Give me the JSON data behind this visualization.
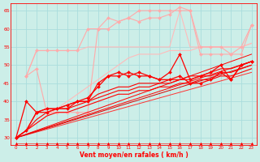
{
  "bg_color": "#cceee8",
  "grid_color": "#aadddd",
  "text_color": "#ff0000",
  "xlabel": "Vent moyen/en rafales ( km/h )",
  "xlim": [
    -0.5,
    23.5
  ],
  "ylim": [
    28,
    67
  ],
  "yticks": [
    30,
    35,
    40,
    45,
    50,
    55,
    60,
    65
  ],
  "xticks": [
    0,
    1,
    2,
    3,
    4,
    5,
    6,
    7,
    8,
    9,
    10,
    11,
    12,
    13,
    14,
    15,
    16,
    17,
    18,
    19,
    20,
    21,
    22,
    23
  ],
  "series": [
    {
      "x": [
        0,
        1,
        2,
        3,
        4,
        5,
        6,
        7,
        8,
        9,
        10,
        11,
        12,
        13,
        14,
        15,
        16,
        17,
        18,
        19,
        20,
        21,
        22,
        23
      ],
      "y": [
        30,
        32,
        34,
        36,
        38,
        40,
        42,
        44,
        46,
        48,
        50,
        52,
        53,
        53,
        53,
        54,
        54,
        54,
        55,
        55,
        55,
        55,
        55,
        56
      ],
      "color": "#ffbbbb",
      "marker": null,
      "markersize": 0,
      "linewidth": 0.8
    },
    {
      "x": [
        1,
        2,
        3,
        4,
        5,
        6,
        7,
        8,
        9,
        10,
        11,
        12,
        13,
        14,
        15,
        16,
        17,
        18,
        19,
        20,
        21,
        22,
        23
      ],
      "y": [
        47,
        54,
        54,
        54,
        54,
        54,
        55,
        55,
        55,
        55,
        55,
        55,
        55,
        55,
        55,
        65,
        55,
        55,
        55,
        55,
        55,
        55,
        56
      ],
      "color": "#ffbbbb",
      "marker": null,
      "markersize": 0,
      "linewidth": 0.8
    },
    {
      "x": [
        1,
        2,
        3,
        4,
        5,
        6,
        7,
        8,
        9,
        10,
        11,
        12,
        13,
        14,
        15,
        16,
        17,
        18,
        19,
        20,
        21,
        22,
        23
      ],
      "y": [
        47,
        54,
        54,
        54,
        54,
        54,
        60,
        60,
        60,
        62,
        63,
        65,
        65,
        65,
        65,
        65,
        65,
        55,
        55,
        55,
        53,
        55,
        61
      ],
      "color": "#ffaaaa",
      "marker": "D",
      "markersize": 2.0,
      "linewidth": 0.8
    },
    {
      "x": [
        1,
        2,
        3,
        4,
        5,
        6,
        7,
        8,
        9,
        10,
        11,
        12,
        13,
        14,
        15,
        16,
        17,
        18,
        19,
        20,
        21,
        22,
        23
      ],
      "y": [
        47,
        49,
        37,
        37,
        37,
        37,
        37,
        60,
        63,
        62,
        63,
        62,
        63,
        63,
        64,
        66,
        65,
        53,
        53,
        53,
        53,
        53,
        61
      ],
      "color": "#ffaaaa",
      "marker": "D",
      "markersize": 2.0,
      "linewidth": 0.8
    },
    {
      "x": [
        0,
        23
      ],
      "y": [
        30,
        51
      ],
      "color": "#ff0000",
      "marker": null,
      "markersize": 0,
      "linewidth": 0.7
    },
    {
      "x": [
        0,
        23
      ],
      "y": [
        30,
        53
      ],
      "color": "#ff0000",
      "marker": null,
      "markersize": 0,
      "linewidth": 0.7
    },
    {
      "x": [
        0,
        23
      ],
      "y": [
        30,
        48
      ],
      "color": "#ff3333",
      "marker": null,
      "markersize": 0,
      "linewidth": 0.7
    },
    {
      "x": [
        0,
        23
      ],
      "y": [
        30,
        50
      ],
      "color": "#dd0000",
      "marker": null,
      "markersize": 0,
      "linewidth": 0.7
    },
    {
      "x": [
        0,
        1,
        2,
        3,
        4,
        5,
        6,
        7,
        8,
        9,
        10,
        11,
        12,
        13,
        14,
        15,
        16,
        17,
        18,
        19,
        20,
        21,
        22,
        23
      ],
      "y": [
        30,
        32,
        37,
        38,
        38,
        39,
        40,
        41,
        44,
        47,
        47,
        48,
        47,
        47,
        46,
        46,
        47,
        45,
        45,
        46,
        48,
        46,
        50,
        51
      ],
      "color": "#ff0000",
      "marker": "D",
      "markersize": 2.0,
      "linewidth": 0.9
    },
    {
      "x": [
        0,
        1,
        2,
        3,
        4,
        5,
        6,
        7,
        8,
        9,
        10,
        11,
        12,
        13,
        14,
        15,
        16,
        17,
        18,
        19,
        20,
        21,
        22,
        23
      ],
      "y": [
        30,
        40,
        37,
        37,
        38,
        38,
        40,
        40,
        45,
        47,
        48,
        47,
        48,
        47,
        46,
        48,
        53,
        46,
        47,
        48,
        50,
        46,
        50,
        51
      ],
      "color": "#ff0000",
      "marker": "D",
      "markersize": 2.0,
      "linewidth": 0.9
    },
    {
      "x": [
        0,
        1,
        2,
        3,
        4,
        5,
        6,
        7,
        8,
        9,
        10,
        11,
        12,
        13,
        14,
        15,
        16,
        17,
        18,
        19,
        20,
        21,
        22,
        23
      ],
      "y": [
        30,
        32,
        34,
        36,
        37,
        37,
        38,
        39,
        40,
        41,
        42,
        42,
        43,
        43,
        44,
        44,
        45,
        45,
        46,
        46,
        47,
        47,
        48,
        49
      ],
      "color": "#ff0000",
      "marker": null,
      "markersize": 0,
      "linewidth": 0.8
    },
    {
      "x": [
        0,
        1,
        2,
        3,
        4,
        5,
        6,
        7,
        8,
        9,
        10,
        11,
        12,
        13,
        14,
        15,
        16,
        17,
        18,
        19,
        20,
        21,
        22,
        23
      ],
      "y": [
        30,
        32,
        35,
        37,
        38,
        38,
        39,
        40,
        41,
        42,
        43,
        43,
        44,
        44,
        45,
        45,
        46,
        46,
        47,
        47,
        48,
        48,
        49,
        50
      ],
      "color": "#ff0000",
      "marker": null,
      "markersize": 0,
      "linewidth": 0.8
    },
    {
      "x": [
        0,
        1,
        2,
        3,
        4,
        5,
        6,
        7,
        8,
        9,
        10,
        11,
        12,
        13,
        14,
        15,
        16,
        17,
        18,
        19,
        20,
        21,
        22,
        23
      ],
      "y": [
        30,
        32,
        37,
        38,
        38,
        39,
        40,
        40,
        42,
        43,
        44,
        44,
        45,
        45,
        45,
        46,
        46,
        47,
        47,
        48,
        49,
        49,
        50,
        51
      ],
      "color": "#ff0000",
      "marker": null,
      "markersize": 0,
      "linewidth": 0.8
    },
    {
      "x": [
        0,
        1,
        2,
        3,
        4,
        5,
        6,
        7,
        8,
        9,
        10,
        11,
        12,
        13,
        14,
        15,
        16,
        17,
        18,
        19,
        20,
        21,
        22,
        23
      ],
      "y": [
        28.5,
        28.5,
        28.5,
        28.5,
        28.5,
        28.5,
        28.5,
        28.5,
        28.5,
        28.5,
        28.5,
        28.5,
        28.5,
        28.5,
        28.5,
        28.5,
        28.5,
        28.5,
        28.5,
        28.5,
        28.5,
        28.5,
        28.5,
        28.5
      ],
      "color": "#ff0000",
      "marker": "^",
      "markersize": 2.0,
      "linewidth": 0.4
    }
  ]
}
